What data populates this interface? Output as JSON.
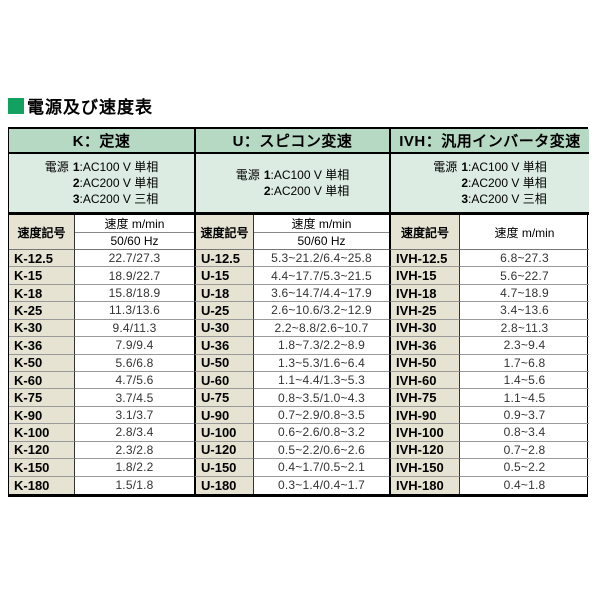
{
  "page": {
    "title": "電源及び速度表"
  },
  "colors": {
    "title_marker": "#12a15e",
    "header_bg": "#b6d9c4",
    "power_bg": "#dcece2",
    "label_bg": "#e7e3d3"
  },
  "table": {
    "groups": [
      {
        "header": "K：定速",
        "power_label": "電源",
        "power_lines": [
          {
            "num": "1",
            "rest": ":AC100 V 単相"
          },
          {
            "num": "2",
            "rest": ":AC200 V 単相"
          },
          {
            "num": "3",
            "rest": ":AC200 V 三相"
          }
        ],
        "symbol_header": "速度記号",
        "speed_header": "速度 m/min",
        "speed_subheader": "50/60 Hz",
        "rows": [
          [
            "K-12.5",
            "22.7/27.3"
          ],
          [
            "K-15",
            "18.9/22.7"
          ],
          [
            "K-18",
            "15.8/18.9"
          ],
          [
            "K-25",
            "11.3/13.6"
          ],
          [
            "K-30",
            "9.4/11.3"
          ],
          [
            "K-36",
            "7.9/9.4"
          ],
          [
            "K-50",
            "5.6/6.8"
          ],
          [
            "K-60",
            "4.7/5.6"
          ],
          [
            "K-75",
            "3.7/4.5"
          ],
          [
            "K-90",
            "3.1/3.7"
          ],
          [
            "K-100",
            "2.8/3.4"
          ],
          [
            "K-120",
            "2.3/2.8"
          ],
          [
            "K-150",
            "1.8/2.2"
          ],
          [
            "K-180",
            "1.5/1.8"
          ]
        ]
      },
      {
        "header": "U：スピコン変速",
        "power_label": "電源",
        "power_lines": [
          {
            "num": "1",
            "rest": ":AC100 V 単相"
          },
          {
            "num": "2",
            "rest": ":AC200 V 単相"
          }
        ],
        "symbol_header": "速度記号",
        "speed_header": "速度 m/min",
        "speed_subheader": "50/60 Hz",
        "rows": [
          [
            "U-12.5",
            "5.3~21.2/6.4~25.8"
          ],
          [
            "U-15",
            "4.4~17.7/5.3~21.5"
          ],
          [
            "U-18",
            "3.6~14.7/4.4~17.9"
          ],
          [
            "U-25",
            "2.6~10.6/3.2~12.9"
          ],
          [
            "U-30",
            "2.2~8.8/2.6~10.7"
          ],
          [
            "U-36",
            "1.8~7.3/2.2~8.9"
          ],
          [
            "U-50",
            "1.3~5.3/1.6~6.4"
          ],
          [
            "U-60",
            "1.1~4.4/1.3~5.3"
          ],
          [
            "U-75",
            "0.8~3.5/1.0~4.3"
          ],
          [
            "U-90",
            "0.7~2.9/0.8~3.5"
          ],
          [
            "U-100",
            "0.6~2.6/0.8~3.2"
          ],
          [
            "U-120",
            "0.5~2.2/0.6~2.6"
          ],
          [
            "U-150",
            "0.4~1.7/0.5~2.1"
          ],
          [
            "U-180",
            "0.3~1.4/0.4~1.7"
          ]
        ]
      },
      {
        "header": "IVH：汎用インバータ変速",
        "power_label": "電源",
        "power_lines": [
          {
            "num": "1",
            "rest": ":AC100 V 単相"
          },
          {
            "num": "2",
            "rest": ":AC200 V 単相"
          },
          {
            "num": "3",
            "rest": ":AC200 V 三相"
          }
        ],
        "symbol_header": "速度記号",
        "speed_header": "速度 m/min",
        "speed_subheader": null,
        "rows": [
          [
            "IVH-12.5",
            "6.8~27.3"
          ],
          [
            "IVH-15",
            "5.6~22.7"
          ],
          [
            "IVH-18",
            "4.7~18.9"
          ],
          [
            "IVH-25",
            "3.4~13.6"
          ],
          [
            "IVH-30",
            "2.8~11.3"
          ],
          [
            "IVH-36",
            "2.3~9.4"
          ],
          [
            "IVH-50",
            "1.7~6.8"
          ],
          [
            "IVH-60",
            "1.4~5.6"
          ],
          [
            "IVH-75",
            "1.1~4.5"
          ],
          [
            "IVH-90",
            "0.9~3.7"
          ],
          [
            "IVH-100",
            "0.8~3.4"
          ],
          [
            "IVH-120",
            "0.7~2.8"
          ],
          [
            "IVH-150",
            "0.5~2.2"
          ],
          [
            "IVH-180",
            "0.4~1.8"
          ]
        ]
      }
    ]
  }
}
